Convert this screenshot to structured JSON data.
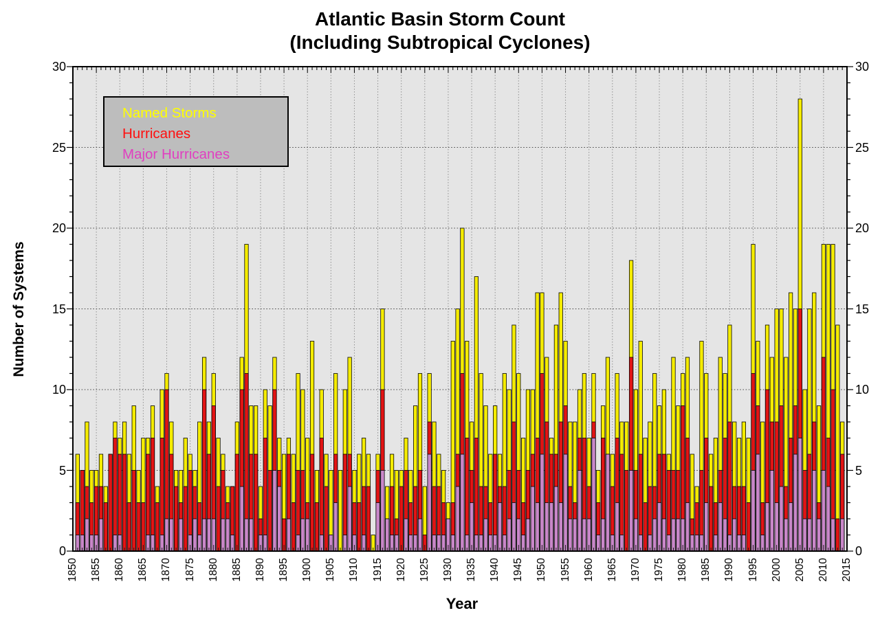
{
  "title": {
    "line1": "Atlantic Basin Storm Count",
    "line2": "(Including Subtropical Cyclones)"
  },
  "axes": {
    "y_label": "Number of Systems",
    "x_label": "Year",
    "y_ticks": [
      0,
      5,
      10,
      15,
      20,
      25,
      30
    ],
    "x_ticks": [
      1850,
      1855,
      1860,
      1865,
      1870,
      1875,
      1880,
      1885,
      1890,
      1895,
      1900,
      1905,
      1910,
      1915,
      1920,
      1925,
      1930,
      1935,
      1940,
      1945,
      1950,
      1955,
      1960,
      1965,
      1970,
      1975,
      1980,
      1985,
      1990,
      1995,
      2000,
      2005,
      2010,
      2015
    ]
  },
  "legend": {
    "items": [
      {
        "label": "Named Storms",
        "color": "#ffff00"
      },
      {
        "label": "Hurricanes",
        "color": "#ff0f0f"
      },
      {
        "label": "Major Hurricanes",
        "color": "#e03fc0"
      }
    ]
  },
  "colors": {
    "plot_background": "#e5e5e5",
    "legend_background": "#bdbdbd",
    "named_storms_bar": "#f5ec00",
    "hurricanes_bar": "#e21414",
    "major_hurricanes_bar": "#c987c9",
    "bar_outline": "#000000",
    "h_gridline": "#4a4a4a",
    "v_gridline": "#909090",
    "axis": "#000000"
  },
  "chart_data": {
    "type": "bar",
    "overlay": true,
    "title": "Atlantic Basin Storm Count (Including Subtropical Cyclones)",
    "xlabel": "Year",
    "ylabel": "Number of Systems",
    "xlim": [
      1850,
      2015
    ],
    "ylim": [
      0,
      30
    ],
    "grid": true,
    "legend_position": "upper-left",
    "years": [
      1851,
      1852,
      1853,
      1854,
      1855,
      1856,
      1857,
      1858,
      1859,
      1860,
      1861,
      1862,
      1863,
      1864,
      1865,
      1866,
      1867,
      1868,
      1869,
      1870,
      1871,
      1872,
      1873,
      1874,
      1875,
      1876,
      1877,
      1878,
      1879,
      1880,
      1881,
      1882,
      1883,
      1884,
      1885,
      1886,
      1887,
      1888,
      1889,
      1890,
      1891,
      1892,
      1893,
      1894,
      1895,
      1896,
      1897,
      1898,
      1899,
      1900,
      1901,
      1902,
      1903,
      1904,
      1905,
      1906,
      1907,
      1908,
      1909,
      1910,
      1911,
      1912,
      1913,
      1914,
      1915,
      1916,
      1917,
      1918,
      1919,
      1920,
      1921,
      1922,
      1923,
      1924,
      1925,
      1926,
      1927,
      1928,
      1929,
      1930,
      1931,
      1932,
      1933,
      1934,
      1935,
      1936,
      1937,
      1938,
      1939,
      1940,
      1941,
      1942,
      1943,
      1944,
      1945,
      1946,
      1947,
      1948,
      1949,
      1950,
      1951,
      1952,
      1953,
      1954,
      1955,
      1956,
      1957,
      1958,
      1959,
      1960,
      1961,
      1962,
      1963,
      1964,
      1965,
      1966,
      1967,
      1968,
      1969,
      1970,
      1971,
      1972,
      1973,
      1974,
      1975,
      1976,
      1977,
      1978,
      1979,
      1980,
      1981,
      1982,
      1983,
      1984,
      1985,
      1986,
      1987,
      1988,
      1989,
      1990,
      1991,
      1992,
      1993,
      1994,
      1995,
      1996,
      1997,
      1998,
      1999,
      2000,
      2001,
      2002,
      2003,
      2004,
      2005,
      2006,
      2007,
      2008,
      2009,
      2010,
      2011,
      2012,
      2013,
      2014
    ],
    "series": [
      {
        "name": "Named Storms",
        "color": "#f5ec00",
        "values": [
          6,
          5,
          8,
          5,
          5,
          6,
          4,
          6,
          8,
          7,
          8,
          6,
          9,
          5,
          7,
          7,
          9,
          4,
          10,
          11,
          8,
          5,
          5,
          7,
          6,
          5,
          8,
          12,
          8,
          11,
          7,
          6,
          4,
          4,
          8,
          12,
          19,
          9,
          9,
          4,
          10,
          9,
          12,
          7,
          6,
          7,
          6,
          11,
          10,
          7,
          13,
          5,
          10,
          6,
          5,
          11,
          5,
          10,
          12,
          5,
          6,
          7,
          6,
          1,
          6,
          15,
          4,
          6,
          5,
          5,
          7,
          5,
          9,
          11,
          4,
          11,
          8,
          6,
          5,
          3,
          13,
          15,
          20,
          13,
          8,
          17,
          11,
          9,
          6,
          9,
          6,
          11,
          10,
          14,
          11,
          7,
          10,
          10,
          16,
          16,
          12,
          7,
          14,
          16,
          13,
          8,
          8,
          10,
          11,
          7,
          11,
          5,
          9,
          12,
          6,
          11,
          8,
          8,
          18,
          10,
          13,
          7,
          8,
          11,
          9,
          10,
          6,
          12,
          9,
          11,
          12,
          6,
          4,
          13,
          11,
          6,
          7,
          12,
          11,
          14,
          8,
          7,
          8,
          7,
          19,
          13,
          8,
          14,
          12,
          15,
          15,
          12,
          16,
          15,
          28,
          10,
          15,
          16,
          9,
          19,
          19,
          19,
          14,
          8
        ]
      },
      {
        "name": "Hurricanes",
        "color": "#e21414",
        "values": [
          3,
          5,
          4,
          3,
          4,
          4,
          3,
          6,
          7,
          6,
          6,
          3,
          5,
          3,
          3,
          6,
          7,
          3,
          7,
          10,
          6,
          4,
          3,
          4,
          5,
          4,
          3,
          10,
          6,
          9,
          4,
          5,
          3,
          4,
          6,
          10,
          11,
          6,
          6,
          2,
          7,
          5,
          10,
          5,
          2,
          6,
          3,
          5,
          5,
          3,
          6,
          3,
          7,
          4,
          1,
          6,
          0,
          6,
          6,
          3,
          3,
          4,
          4,
          0,
          5,
          10,
          2,
          4,
          2,
          4,
          5,
          3,
          4,
          5,
          1,
          8,
          4,
          4,
          3,
          2,
          3,
          6,
          11,
          7,
          5,
          7,
          4,
          4,
          3,
          6,
          4,
          4,
          5,
          8,
          5,
          3,
          5,
          6,
          7,
          11,
          8,
          6,
          6,
          8,
          9,
          4,
          3,
          7,
          7,
          4,
          8,
          3,
          7,
          6,
          4,
          7,
          6,
          5,
          12,
          5,
          6,
          3,
          4,
          4,
          6,
          6,
          5,
          5,
          5,
          9,
          7,
          2,
          3,
          5,
          7,
          4,
          3,
          5,
          7,
          8,
          4,
          4,
          4,
          3,
          11,
          9,
          3,
          10,
          8,
          8,
          9,
          4,
          7,
          9,
          15,
          5,
          6,
          8,
          3,
          12,
          7,
          10,
          2,
          6
        ]
      },
      {
        "name": "Major Hurricanes",
        "color": "#c987c9",
        "values": [
          1,
          1,
          2,
          1,
          1,
          2,
          0,
          0,
          1,
          1,
          0,
          0,
          0,
          0,
          0,
          1,
          1,
          0,
          1,
          2,
          2,
          0,
          2,
          0,
          1,
          2,
          1,
          2,
          2,
          2,
          0,
          2,
          2,
          1,
          0,
          4,
          2,
          2,
          0,
          1,
          1,
          0,
          5,
          4,
          0,
          2,
          0,
          1,
          2,
          2,
          0,
          0,
          1,
          0,
          1,
          3,
          0,
          1,
          4,
          1,
          0,
          1,
          0,
          0,
          3,
          5,
          2,
          1,
          1,
          0,
          2,
          1,
          1,
          2,
          0,
          6,
          1,
          1,
          1,
          2,
          1,
          4,
          6,
          1,
          3,
          1,
          1,
          2,
          1,
          1,
          3,
          1,
          2,
          3,
          2,
          1,
          2,
          4,
          3,
          6,
          3,
          3,
          4,
          3,
          6,
          2,
          2,
          5,
          2,
          2,
          7,
          1,
          2,
          6,
          1,
          3,
          1,
          0,
          5,
          2,
          1,
          0,
          1,
          2,
          3,
          2,
          1,
          2,
          2,
          2,
          3,
          1,
          1,
          1,
          3,
          0,
          1,
          3,
          2,
          1,
          2,
          1,
          1,
          0,
          5,
          6,
          1,
          3,
          5,
          3,
          4,
          2,
          3,
          6,
          7,
          2,
          2,
          5,
          2,
          5,
          4,
          2,
          0,
          2
        ]
      }
    ]
  }
}
